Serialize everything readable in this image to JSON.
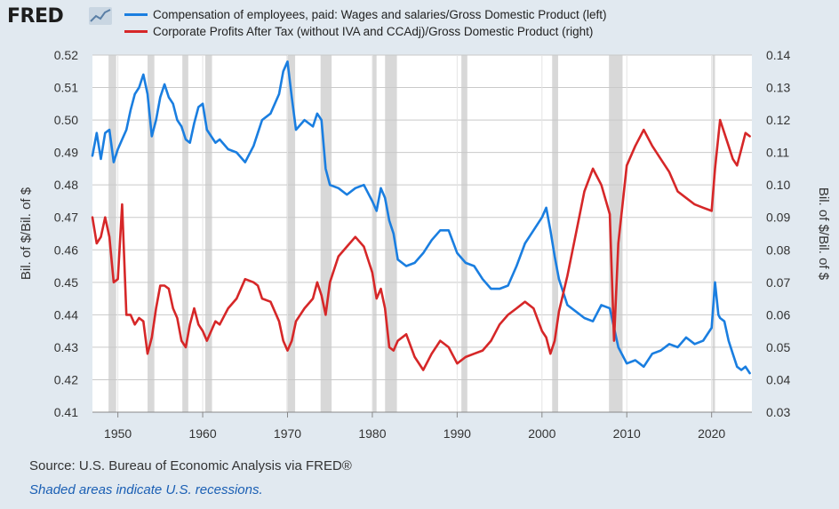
{
  "header": {
    "logo_text": "FRED",
    "logo_icon": "fred-line-chart-icon"
  },
  "legend": [
    {
      "label": "Compensation of employees, paid: Wages and salaries/Gross Domestic Product (left)",
      "color": "#1a7ee0"
    },
    {
      "label": "Corporate Profits After Tax (without IVA and CCAdj)/Gross Domestic Product (right)",
      "color": "#d62728"
    }
  ],
  "footer": {
    "source": "Source: U.S. Bureau of Economic Analysis via FRED®",
    "note": "Shaded areas indicate U.S. recessions."
  },
  "chart_data": {
    "type": "line",
    "ylabel_left": "Bil. of $/Bil. of $",
    "ylabel_right": "Bil. of $/Bil. of $",
    "xlim": [
      1947,
      2024.75
    ],
    "ylim_left": [
      0.41,
      0.52
    ],
    "ylim_right": [
      0.03,
      0.14
    ],
    "x_ticks": [
      1950,
      1960,
      1970,
      1980,
      1990,
      2000,
      2010,
      2020
    ],
    "y_ticks_left": [
      "0.41",
      "0.42",
      "0.43",
      "0.44",
      "0.45",
      "0.46",
      "0.47",
      "0.48",
      "0.49",
      "0.50",
      "0.51",
      "0.52"
    ],
    "y_ticks_right": [
      "0.03",
      "0.04",
      "0.05",
      "0.06",
      "0.07",
      "0.08",
      "0.09",
      "0.10",
      "0.11",
      "0.12",
      "0.13",
      "0.14"
    ],
    "grid": true,
    "recessions": [
      [
        1948.9,
        1949.8
      ],
      [
        1953.5,
        1954.3
      ],
      [
        1957.6,
        1958.3
      ],
      [
        1960.3,
        1961.1
      ],
      [
        1969.9,
        1970.9
      ],
      [
        1973.9,
        1975.2
      ],
      [
        1980.0,
        1980.5
      ],
      [
        1981.5,
        1982.9
      ],
      [
        1990.5,
        1991.2
      ],
      [
        2001.2,
        2001.9
      ],
      [
        2007.9,
        2009.5
      ],
      [
        2020.1,
        2020.4
      ]
    ],
    "series": [
      {
        "name": "Compensation of employees, paid: Wages and salaries/Gross Domestic Product (left)",
        "axis": "left",
        "color": "#1a7ee0",
        "x": [
          1947,
          1947.5,
          1948,
          1948.5,
          1949,
          1949.5,
          1950,
          1950.5,
          1951,
          1951.5,
          1952,
          1952.5,
          1953,
          1953.5,
          1954,
          1954.5,
          1955,
          1955.5,
          1956,
          1956.5,
          1957,
          1957.5,
          1958,
          1958.5,
          1959,
          1959.5,
          1960,
          1960.5,
          1961,
          1961.5,
          1962,
          1963,
          1964,
          1965,
          1966,
          1966.5,
          1967,
          1968,
          1969,
          1969.5,
          1970,
          1970.5,
          1971,
          1972,
          1973,
          1973.5,
          1974,
          1974.5,
          1975,
          1976,
          1977,
          1978,
          1979,
          1980,
          1980.5,
          1981,
          1981.5,
          1982,
          1982.5,
          1983,
          1984,
          1985,
          1986,
          1987,
          1988,
          1989,
          1990,
          1991,
          1992,
          1993,
          1994,
          1995,
          1996,
          1997,
          1998,
          1999,
          2000,
          2000.5,
          2001,
          2001.5,
          2002,
          2003,
          2004,
          2005,
          2006,
          2007,
          2008,
          2008.5,
          2009,
          2010,
          2011,
          2012,
          2013,
          2014,
          2015,
          2016,
          2017,
          2018,
          2019,
          2020,
          2020.4,
          2020.8,
          2021,
          2021.5,
          2022,
          2022.5,
          2023,
          2023.5,
          2024,
          2024.5
        ],
        "values": [
          0.489,
          0.496,
          0.488,
          0.496,
          0.497,
          0.487,
          0.491,
          0.494,
          0.497,
          0.503,
          0.508,
          0.51,
          0.514,
          0.508,
          0.495,
          0.5,
          0.507,
          0.511,
          0.507,
          0.505,
          0.5,
          0.498,
          0.494,
          0.493,
          0.499,
          0.504,
          0.505,
          0.497,
          0.495,
          0.493,
          0.494,
          0.491,
          0.49,
          0.487,
          0.492,
          0.496,
          0.5,
          0.502,
          0.508,
          0.515,
          0.518,
          0.507,
          0.497,
          0.5,
          0.498,
          0.502,
          0.5,
          0.485,
          0.48,
          0.479,
          0.477,
          0.479,
          0.48,
          0.475,
          0.472,
          0.479,
          0.476,
          0.469,
          0.465,
          0.457,
          0.455,
          0.456,
          0.459,
          0.463,
          0.466,
          0.466,
          0.459,
          0.456,
          0.455,
          0.451,
          0.448,
          0.448,
          0.449,
          0.455,
          0.462,
          0.466,
          0.47,
          0.473,
          0.466,
          0.458,
          0.451,
          0.443,
          0.441,
          0.439,
          0.438,
          0.443,
          0.442,
          0.436,
          0.43,
          0.425,
          0.426,
          0.424,
          0.428,
          0.429,
          0.431,
          0.43,
          0.433,
          0.431,
          0.432,
          0.436,
          0.45,
          0.44,
          0.439,
          0.438,
          0.432,
          0.428,
          0.424,
          0.423,
          0.424,
          0.422
        ]
      },
      {
        "name": "Corporate Profits After Tax (without IVA and CCAdj)/Gross Domestic Product (right)",
        "axis": "right",
        "color": "#d62728",
        "x": [
          1947,
          1947.5,
          1948,
          1948.5,
          1949,
          1949.5,
          1950,
          1950.5,
          1951,
          1951.5,
          1952,
          1952.5,
          1953,
          1953.5,
          1954,
          1954.5,
          1955,
          1955.5,
          1956,
          1956.5,
          1957,
          1957.5,
          1958,
          1958.5,
          1959,
          1959.5,
          1960,
          1960.5,
          1961,
          1961.5,
          1962,
          1963,
          1964,
          1965,
          1966,
          1966.5,
          1967,
          1968,
          1969,
          1969.5,
          1970,
          1970.5,
          1971,
          1972,
          1973,
          1973.5,
          1974,
          1974.5,
          1975,
          1976,
          1977,
          1978,
          1979,
          1980,
          1980.5,
          1981,
          1981.5,
          1982,
          1982.5,
          1983,
          1984,
          1985,
          1986,
          1987,
          1988,
          1989,
          1990,
          1991,
          1992,
          1993,
          1994,
          1995,
          1996,
          1997,
          1998,
          1999,
          2000,
          2000.5,
          2001,
          2001.5,
          2002,
          2003,
          2004,
          2005,
          2006,
          2007,
          2008,
          2008.5,
          2009,
          2010,
          2011,
          2012,
          2013,
          2014,
          2015,
          2016,
          2017,
          2018,
          2019,
          2020,
          2020.4,
          2020.8,
          2021,
          2021.5,
          2022,
          2022.5,
          2023,
          2023.5,
          2024,
          2024.5
        ],
        "values": [
          0.09,
          0.082,
          0.084,
          0.09,
          0.084,
          0.07,
          0.071,
          0.094,
          0.06,
          0.06,
          0.057,
          0.059,
          0.058,
          0.048,
          0.053,
          0.062,
          0.069,
          0.069,
          0.068,
          0.062,
          0.059,
          0.052,
          0.05,
          0.057,
          0.062,
          0.057,
          0.055,
          0.052,
          0.055,
          0.058,
          0.057,
          0.062,
          0.065,
          0.071,
          0.07,
          0.069,
          0.065,
          0.064,
          0.058,
          0.052,
          0.049,
          0.052,
          0.058,
          0.062,
          0.065,
          0.07,
          0.066,
          0.06,
          0.07,
          0.078,
          0.081,
          0.084,
          0.081,
          0.073,
          0.065,
          0.068,
          0.062,
          0.05,
          0.049,
          0.052,
          0.054,
          0.047,
          0.043,
          0.048,
          0.052,
          0.05,
          0.045,
          0.047,
          0.048,
          0.049,
          0.052,
          0.057,
          0.06,
          0.062,
          0.064,
          0.062,
          0.055,
          0.053,
          0.048,
          0.052,
          0.061,
          0.072,
          0.085,
          0.098,
          0.105,
          0.1,
          0.091,
          0.052,
          0.082,
          0.106,
          0.112,
          0.117,
          0.112,
          0.108,
          0.104,
          0.098,
          0.096,
          0.094,
          0.093,
          0.092,
          0.105,
          0.115,
          0.12,
          0.116,
          0.112,
          0.108,
          0.106,
          0.111,
          0.116,
          0.115
        ]
      }
    ]
  }
}
